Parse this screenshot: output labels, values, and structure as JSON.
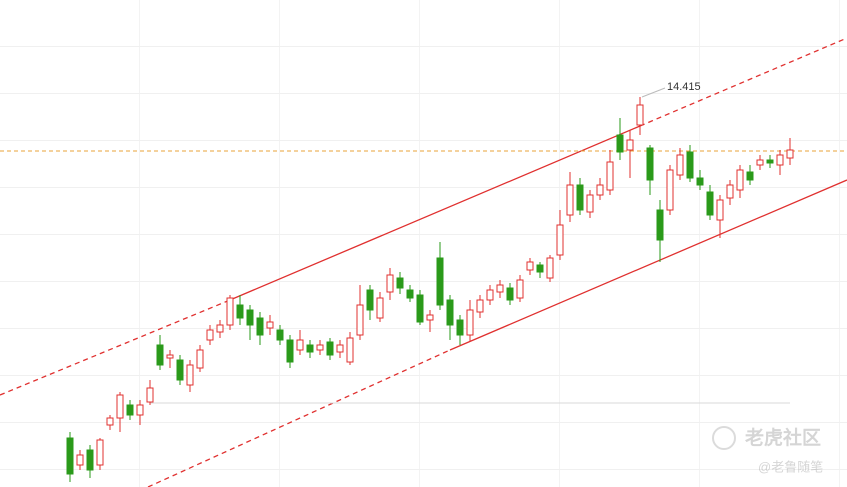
{
  "chart_data": {
    "type": "candlestick",
    "ylim": [
      10.515,
      15.385
    ],
    "up_color": "#e0302f",
    "down_color": "#2a9a1a",
    "reference_color": "#e8a33a",
    "reference_line": 13.875,
    "annotation": "14.415",
    "annotation_index": 57,
    "watermark": "老虎社区",
    "watermark_sub": "@老鲁随笔",
    "candles": [
      [
        11.005,
        11.065,
        10.565,
        10.645
      ],
      [
        10.735,
        10.885,
        10.685,
        10.835
      ],
      [
        10.885,
        10.935,
        10.605,
        10.685
      ],
      [
        10.735,
        11.005,
        10.685,
        10.985
      ],
      [
        11.135,
        11.235,
        11.085,
        11.205
      ],
      [
        11.205,
        11.465,
        11.065,
        11.435
      ],
      [
        11.335,
        11.385,
        11.185,
        11.235
      ],
      [
        11.235,
        11.385,
        11.135,
        11.335
      ],
      [
        11.365,
        11.585,
        11.335,
        11.505
      ],
      [
        11.935,
        12.035,
        11.685,
        11.735
      ],
      [
        11.805,
        11.885,
        11.705,
        11.835
      ],
      [
        11.785,
        11.835,
        11.535,
        11.585
      ],
      [
        11.535,
        11.785,
        11.465,
        11.735
      ],
      [
        11.705,
        11.935,
        11.665,
        11.885
      ],
      [
        11.985,
        12.135,
        11.935,
        12.085
      ],
      [
        12.065,
        12.185,
        12.005,
        12.135
      ],
      [
        12.135,
        12.435,
        12.085,
        12.405
      ],
      [
        12.335,
        12.435,
        12.135,
        12.205
      ],
      [
        12.285,
        12.335,
        11.985,
        12.135
      ],
      [
        12.205,
        12.265,
        11.935,
        12.035
      ],
      [
        12.105,
        12.235,
        12.035,
        12.165
      ],
      [
        12.085,
        12.135,
        11.935,
        11.985
      ],
      [
        11.985,
        12.035,
        11.705,
        11.765
      ],
      [
        11.885,
        12.085,
        11.835,
        11.985
      ],
      [
        11.935,
        11.985,
        11.805,
        11.865
      ],
      [
        11.885,
        11.985,
        11.835,
        11.935
      ],
      [
        11.965,
        12.005,
        11.785,
        11.835
      ],
      [
        11.865,
        11.985,
        11.805,
        11.935
      ],
      [
        11.765,
        12.065,
        11.735,
        12.005
      ],
      [
        12.035,
        12.535,
        11.985,
        12.335
      ],
      [
        12.485,
        12.535,
        12.185,
        12.285
      ],
      [
        12.205,
        12.465,
        12.165,
        12.405
      ],
      [
        12.465,
        12.705,
        12.385,
        12.635
      ],
      [
        12.605,
        12.665,
        12.445,
        12.505
      ],
      [
        12.485,
        12.535,
        12.365,
        12.405
      ],
      [
        12.435,
        12.485,
        12.135,
        12.165
      ],
      [
        12.185,
        12.285,
        12.065,
        12.235
      ],
      [
        12.805,
        12.965,
        12.285,
        12.335
      ],
      [
        12.385,
        12.435,
        11.985,
        12.135
      ],
      [
        12.185,
        12.235,
        11.935,
        12.035
      ],
      [
        12.035,
        12.385,
        11.965,
        12.285
      ],
      [
        12.265,
        12.435,
        12.205,
        12.385
      ],
      [
        12.385,
        12.535,
        12.335,
        12.485
      ],
      [
        12.465,
        12.585,
        12.405,
        12.535
      ],
      [
        12.505,
        12.555,
        12.335,
        12.385
      ],
      [
        12.405,
        12.635,
        12.365,
        12.585
      ],
      [
        12.685,
        12.805,
        12.635,
        12.765
      ],
      [
        12.735,
        12.765,
        12.605,
        12.665
      ],
      [
        12.605,
        12.835,
        12.565,
        12.805
      ],
      [
        12.835,
        13.285,
        12.785,
        13.135
      ],
      [
        13.235,
        13.665,
        13.165,
        13.535
      ],
      [
        13.535,
        13.605,
        13.235,
        13.285
      ],
      [
        13.265,
        13.485,
        13.205,
        13.435
      ],
      [
        13.435,
        13.605,
        13.385,
        13.535
      ],
      [
        13.485,
        13.885,
        13.435,
        13.765
      ],
      [
        14.035,
        14.205,
        13.785,
        13.865
      ],
      [
        13.885,
        14.085,
        13.605,
        13.985
      ],
      [
        14.135,
        14.415,
        14.035,
        14.335
      ],
      [
        13.905,
        13.935,
        13.435,
        13.585
      ],
      [
        13.285,
        13.385,
        12.765,
        12.985
      ],
      [
        13.285,
        13.735,
        13.235,
        13.685
      ],
      [
        13.635,
        13.905,
        13.585,
        13.835
      ],
      [
        13.865,
        13.935,
        13.565,
        13.605
      ],
      [
        13.605,
        13.685,
        13.485,
        13.535
      ],
      [
        13.465,
        13.535,
        13.185,
        13.235
      ],
      [
        13.185,
        13.435,
        13.005,
        13.385
      ],
      [
        13.405,
        13.585,
        13.335,
        13.535
      ],
      [
        13.485,
        13.735,
        13.405,
        13.685
      ],
      [
        13.665,
        13.735,
        13.535,
        13.585
      ],
      [
        13.735,
        13.835,
        13.685,
        13.785
      ],
      [
        13.785,
        13.835,
        13.705,
        13.755
      ],
      [
        13.735,
        13.885,
        13.635,
        13.835
      ],
      [
        13.805,
        14.005,
        13.735,
        13.885
      ]
    ]
  }
}
